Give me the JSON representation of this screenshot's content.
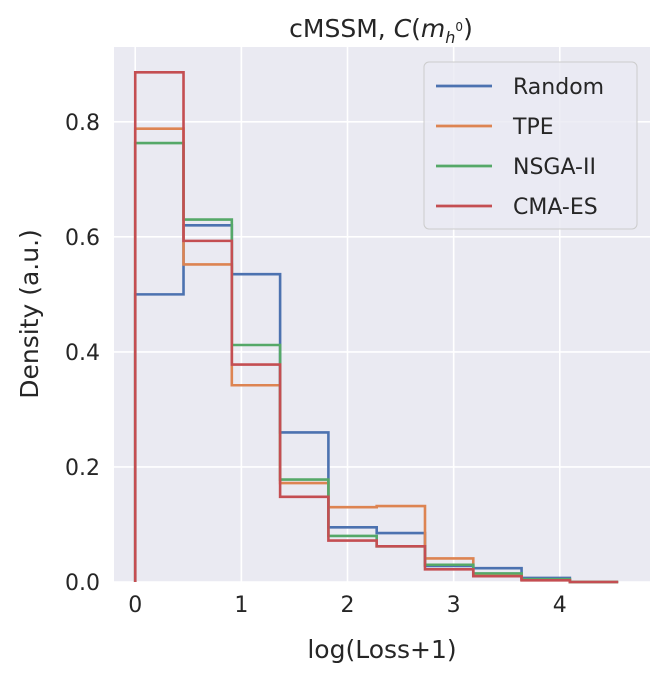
{
  "chart_data": {
    "type": "histogram-step",
    "title": {
      "prefix": "cMSSM, ",
      "var": "C",
      "open": "(",
      "mathvar": "m",
      "sub": "h",
      "sup": "0",
      "close": ")"
    },
    "xlabel": "log(Loss+1)",
    "ylabel": "Density (a.u.)",
    "xlim": [
      -0.2,
      4.85
    ],
    "ylim": [
      0.0,
      0.93
    ],
    "xticks": [
      0,
      1,
      2,
      3,
      4
    ],
    "xtick_labels": [
      "0",
      "1",
      "2",
      "3",
      "4"
    ],
    "yticks": [
      0.0,
      0.2,
      0.4,
      0.6,
      0.8
    ],
    "ytick_labels": [
      "0.0",
      "0.2",
      "0.4",
      "0.6",
      "0.8"
    ],
    "grid": true,
    "legend_position": "top-right",
    "bin_edges": [
      0,
      0.455,
      0.91,
      1.365,
      1.82,
      2.275,
      2.73,
      3.185,
      3.64,
      4.095,
      4.55
    ],
    "series": [
      {
        "name": "Random",
        "color": "#4c72b0",
        "values": [
          0.5,
          0.62,
          0.535,
          0.26,
          0.095,
          0.085,
          0.028,
          0.024,
          0.007,
          0.0
        ]
      },
      {
        "name": "TPE",
        "color": "#dd8452",
        "values": [
          0.788,
          0.552,
          0.342,
          0.172,
          0.13,
          0.132,
          0.041,
          0.012,
          0.004,
          0.0
        ]
      },
      {
        "name": "NSGA-II",
        "color": "#55a868",
        "values": [
          0.763,
          0.63,
          0.412,
          0.178,
          0.08,
          0.062,
          0.03,
          0.015,
          0.005,
          0.0
        ]
      },
      {
        "name": "CMA-ES",
        "color": "#c44e52",
        "values": [
          0.886,
          0.593,
          0.378,
          0.148,
          0.072,
          0.062,
          0.022,
          0.01,
          0.003,
          0.0
        ]
      }
    ]
  }
}
